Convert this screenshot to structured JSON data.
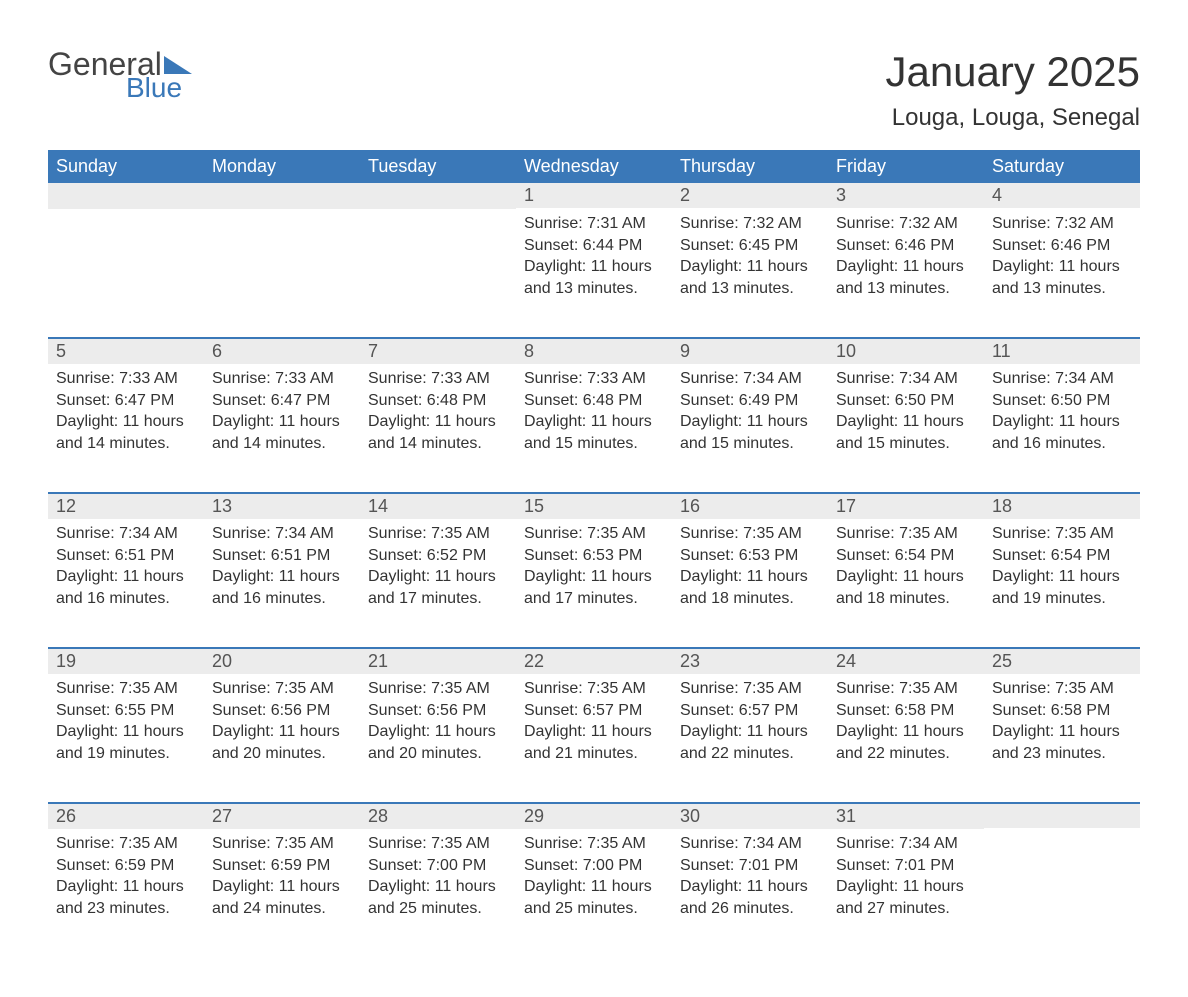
{
  "logo": {
    "text_general": "General",
    "text_blue": "Blue",
    "triangle_color": "#3a78b8"
  },
  "header": {
    "month_title": "January 2025",
    "location": "Louga, Louga, Senegal"
  },
  "colors": {
    "header_bg": "#3a78b8",
    "header_text": "#ffffff",
    "daynum_bg": "#ececec",
    "row_divider": "#3a78b8",
    "body_text": "#333333"
  },
  "weekdays": [
    "Sunday",
    "Monday",
    "Tuesday",
    "Wednesday",
    "Thursday",
    "Friday",
    "Saturday"
  ],
  "weeks": [
    [
      null,
      null,
      null,
      {
        "n": "1",
        "sunrise": "7:31 AM",
        "sunset": "6:44 PM",
        "dl": "11 hours and 13 minutes."
      },
      {
        "n": "2",
        "sunrise": "7:32 AM",
        "sunset": "6:45 PM",
        "dl": "11 hours and 13 minutes."
      },
      {
        "n": "3",
        "sunrise": "7:32 AM",
        "sunset": "6:46 PM",
        "dl": "11 hours and 13 minutes."
      },
      {
        "n": "4",
        "sunrise": "7:32 AM",
        "sunset": "6:46 PM",
        "dl": "11 hours and 13 minutes."
      }
    ],
    [
      {
        "n": "5",
        "sunrise": "7:33 AM",
        "sunset": "6:47 PM",
        "dl": "11 hours and 14 minutes."
      },
      {
        "n": "6",
        "sunrise": "7:33 AM",
        "sunset": "6:47 PM",
        "dl": "11 hours and 14 minutes."
      },
      {
        "n": "7",
        "sunrise": "7:33 AM",
        "sunset": "6:48 PM",
        "dl": "11 hours and 14 minutes."
      },
      {
        "n": "8",
        "sunrise": "7:33 AM",
        "sunset": "6:48 PM",
        "dl": "11 hours and 15 minutes."
      },
      {
        "n": "9",
        "sunrise": "7:34 AM",
        "sunset": "6:49 PM",
        "dl": "11 hours and 15 minutes."
      },
      {
        "n": "10",
        "sunrise": "7:34 AM",
        "sunset": "6:50 PM",
        "dl": "11 hours and 15 minutes."
      },
      {
        "n": "11",
        "sunrise": "7:34 AM",
        "sunset": "6:50 PM",
        "dl": "11 hours and 16 minutes."
      }
    ],
    [
      {
        "n": "12",
        "sunrise": "7:34 AM",
        "sunset": "6:51 PM",
        "dl": "11 hours and 16 minutes."
      },
      {
        "n": "13",
        "sunrise": "7:34 AM",
        "sunset": "6:51 PM",
        "dl": "11 hours and 16 minutes."
      },
      {
        "n": "14",
        "sunrise": "7:35 AM",
        "sunset": "6:52 PM",
        "dl": "11 hours and 17 minutes."
      },
      {
        "n": "15",
        "sunrise": "7:35 AM",
        "sunset": "6:53 PM",
        "dl": "11 hours and 17 minutes."
      },
      {
        "n": "16",
        "sunrise": "7:35 AM",
        "sunset": "6:53 PM",
        "dl": "11 hours and 18 minutes."
      },
      {
        "n": "17",
        "sunrise": "7:35 AM",
        "sunset": "6:54 PM",
        "dl": "11 hours and 18 minutes."
      },
      {
        "n": "18",
        "sunrise": "7:35 AM",
        "sunset": "6:54 PM",
        "dl": "11 hours and 19 minutes."
      }
    ],
    [
      {
        "n": "19",
        "sunrise": "7:35 AM",
        "sunset": "6:55 PM",
        "dl": "11 hours and 19 minutes."
      },
      {
        "n": "20",
        "sunrise": "7:35 AM",
        "sunset": "6:56 PM",
        "dl": "11 hours and 20 minutes."
      },
      {
        "n": "21",
        "sunrise": "7:35 AM",
        "sunset": "6:56 PM",
        "dl": "11 hours and 20 minutes."
      },
      {
        "n": "22",
        "sunrise": "7:35 AM",
        "sunset": "6:57 PM",
        "dl": "11 hours and 21 minutes."
      },
      {
        "n": "23",
        "sunrise": "7:35 AM",
        "sunset": "6:57 PM",
        "dl": "11 hours and 22 minutes."
      },
      {
        "n": "24",
        "sunrise": "7:35 AM",
        "sunset": "6:58 PM",
        "dl": "11 hours and 22 minutes."
      },
      {
        "n": "25",
        "sunrise": "7:35 AM",
        "sunset": "6:58 PM",
        "dl": "11 hours and 23 minutes."
      }
    ],
    [
      {
        "n": "26",
        "sunrise": "7:35 AM",
        "sunset": "6:59 PM",
        "dl": "11 hours and 23 minutes."
      },
      {
        "n": "27",
        "sunrise": "7:35 AM",
        "sunset": "6:59 PM",
        "dl": "11 hours and 24 minutes."
      },
      {
        "n": "28",
        "sunrise": "7:35 AM",
        "sunset": "7:00 PM",
        "dl": "11 hours and 25 minutes."
      },
      {
        "n": "29",
        "sunrise": "7:35 AM",
        "sunset": "7:00 PM",
        "dl": "11 hours and 25 minutes."
      },
      {
        "n": "30",
        "sunrise": "7:34 AM",
        "sunset": "7:01 PM",
        "dl": "11 hours and 26 minutes."
      },
      {
        "n": "31",
        "sunrise": "7:34 AM",
        "sunset": "7:01 PM",
        "dl": "11 hours and 27 minutes."
      },
      null
    ]
  ],
  "labels": {
    "sunrise": "Sunrise: ",
    "sunset": "Sunset: ",
    "daylight": "Daylight: "
  }
}
